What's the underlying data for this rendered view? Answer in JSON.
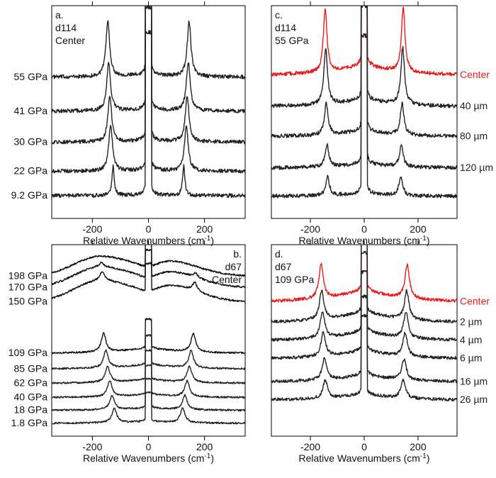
{
  "colors": {
    "trace": "#222222",
    "highlight": "#e81c1c",
    "axis": "#000000"
  },
  "chart_data": [
    {
      "panel": "a",
      "type": "line",
      "annotation": [
        "a.",
        "d114",
        "Center"
      ],
      "xlabel": "Relative Wavenumbers (cm",
      "xlabel_sup": "-1",
      "xlim": [
        -345,
        345
      ],
      "xticks": [
        -200,
        0,
        200
      ],
      "xtick_labels": [
        "-200",
        "0",
        "200"
      ],
      "series_label_side": "left",
      "series": [
        {
          "name": "55 GPa",
          "color": "#222222",
          "offset": 4.35,
          "peak_pos": 145,
          "peak_h": 1.7,
          "peak_w": 8,
          "laser_h": 5,
          "bg": 0.08
        },
        {
          "name": "41 GPa",
          "color": "#222222",
          "offset": 3.3,
          "peak_pos": 142,
          "peak_h": 1.5,
          "peak_w": 8,
          "laser_h": 5,
          "bg": 0.06
        },
        {
          "name": "30 GPa",
          "color": "#222222",
          "offset": 2.35,
          "peak_pos": 138,
          "peak_h": 1.4,
          "peak_w": 8,
          "laser_h": 5,
          "bg": 0.05
        },
        {
          "name": "22 GPa",
          "color": "#222222",
          "offset": 1.45,
          "peak_pos": 135,
          "peak_h": 1.4,
          "peak_w": 8,
          "laser_h": 5,
          "bg": 0.04
        },
        {
          "name": "9.2 GPa",
          "color": "#222222",
          "offset": 0.7,
          "peak_pos": 126,
          "peak_h": 0.9,
          "peak_w": 5,
          "laser_h": 5,
          "bg": 0.03
        }
      ]
    },
    {
      "panel": "c",
      "type": "line",
      "annotation": [
        "c.",
        "d114",
        "55 GPa"
      ],
      "xlabel": "Relative Wavenumbers (cm",
      "xlabel_sup": "-1",
      "xlim": [
        -345,
        345
      ],
      "xticks": [
        -200,
        0,
        200
      ],
      "xtick_labels": [
        "-200",
        "0",
        "200"
      ],
      "series_label_side": "right",
      "series": [
        {
          "name": "Center",
          "color": "#e81c1c",
          "offset": 4.55,
          "peak_pos": 145,
          "peak_h": 2.0,
          "peak_w": 8,
          "laser_h": 5,
          "bg": 0.35
        },
        {
          "name": "40 µm",
          "color": "#222222",
          "offset": 3.55,
          "peak_pos": 143,
          "peak_h": 1.8,
          "peak_w": 8,
          "laser_h": 5,
          "bg": 0.25
        },
        {
          "name": "80 µm",
          "color": "#222222",
          "offset": 2.6,
          "peak_pos": 141,
          "peak_h": 1.0,
          "peak_w": 8,
          "laser_h": 5,
          "bg": 0.2
        },
        {
          "name": "120 µm",
          "color": "#222222",
          "offset": 1.6,
          "peak_pos": 138,
          "peak_h": 0.7,
          "peak_w": 8,
          "laser_h": 5,
          "bg": 0.15
        },
        {
          "name": "",
          "color": "#222222",
          "offset": 0.7,
          "peak_pos": 136,
          "peak_h": 0.6,
          "peak_w": 8,
          "laser_h": 5,
          "bg": 0.1
        }
      ]
    },
    {
      "panel": "b",
      "type": "line",
      "annotation": [
        "b.",
        "d67",
        "Center"
      ],
      "xlabel": "Relative Wavenumbers (cm",
      "xlabel_sup": "-1",
      "xlim": [
        -345,
        345
      ],
      "xticks": [
        -200,
        0,
        200
      ],
      "xtick_labels": [
        "-200",
        "0",
        "200"
      ],
      "series_label_side": "left",
      "series": [
        {
          "name": "198 GPa",
          "color": "#111111",
          "offset": 11.2,
          "peak_pos": 170,
          "peak_h": 0.0,
          "peak_w": 10,
          "laser_h": 2,
          "bg": 0,
          "broad": 1.3
        },
        {
          "name": "170 GPa",
          "color": "#111111",
          "offset": 10.4,
          "peak_pos": 168,
          "peak_h": 0.3,
          "peak_w": 10,
          "laser_h": 2,
          "bg": 0,
          "broad": 1.35
        },
        {
          "name": "150 GPa",
          "color": "#111111",
          "offset": 9.4,
          "peak_pos": 165,
          "peak_h": 0.6,
          "peak_w": 10,
          "laser_h": 2,
          "bg": 0,
          "broad": 1.4
        },
        {
          "name": "109 GPa",
          "color": "#111111",
          "offset": 5.8,
          "peak_pos": 160,
          "peak_h": 1.3,
          "peak_w": 10,
          "laser_h": 2,
          "bg": 0.4
        },
        {
          "name": "85 GPa",
          "color": "#222222",
          "offset": 4.7,
          "peak_pos": 152,
          "peak_h": 1.2,
          "peak_w": 10,
          "laser_h": 2,
          "bg": 0.35
        },
        {
          "name": "62 GPa",
          "color": "#222222",
          "offset": 3.7,
          "peak_pos": 146,
          "peak_h": 1.1,
          "peak_w": 10,
          "laser_h": 2,
          "bg": 0.3
        },
        {
          "name": "40 GPa",
          "color": "#222222",
          "offset": 2.7,
          "peak_pos": 138,
          "peak_h": 1.1,
          "peak_w": 10,
          "laser_h": 2,
          "bg": 0.25
        },
        {
          "name": "18 GPa",
          "color": "#222222",
          "offset": 1.8,
          "peak_pos": 130,
          "peak_h": 1.0,
          "peak_w": 10,
          "laser_h": 2,
          "bg": 0.2
        },
        {
          "name": "1.8 GPa",
          "color": "#222222",
          "offset": 0.9,
          "peak_pos": 122,
          "peak_h": 1.0,
          "peak_w": 10,
          "laser_h": 2,
          "bg": 0.15
        }
      ]
    },
    {
      "panel": "d",
      "type": "line",
      "annotation": [
        "d.",
        "d67",
        "109 GPa"
      ],
      "xlabel": "Relative Wavenumbers (cm",
      "xlabel_sup": "-1",
      "xlim": [
        -345,
        345
      ],
      "xticks": [
        -200,
        0,
        200
      ],
      "xtick_labels": [
        "-200",
        "0",
        "200"
      ],
      "series_label_side": "right",
      "series": [
        {
          "name": "Center",
          "color": "#e81c1c",
          "offset": 5.2,
          "peak_pos": 160,
          "peak_h": 1.3,
          "peak_w": 10,
          "laser_h": 3,
          "bg": 0.5
        },
        {
          "name": "2 µm",
          "color": "#222222",
          "offset": 4.4,
          "peak_pos": 158,
          "peak_h": 1.1,
          "peak_w": 10,
          "laser_h": 3,
          "bg": 0.45
        },
        {
          "name": "4 µm",
          "color": "#222222",
          "offset": 3.7,
          "peak_pos": 155,
          "peak_h": 1.0,
          "peak_w": 10,
          "laser_h": 3,
          "bg": 0.4
        },
        {
          "name": "6 µm",
          "color": "#222222",
          "offset": 3.0,
          "peak_pos": 152,
          "peak_h": 0.9,
          "peak_w": 10,
          "laser_h": 3,
          "bg": 0.35
        },
        {
          "name": "16 µm",
          "color": "#222222",
          "offset": 2.1,
          "peak_pos": 148,
          "peak_h": 0.8,
          "peak_w": 10,
          "laser_h": 3,
          "bg": 0.3
        },
        {
          "name": "26 µm",
          "color": "#222222",
          "offset": 1.4,
          "peak_pos": 145,
          "peak_h": 0.7,
          "peak_w": 10,
          "laser_h": 3,
          "bg": 0.25
        }
      ]
    }
  ]
}
